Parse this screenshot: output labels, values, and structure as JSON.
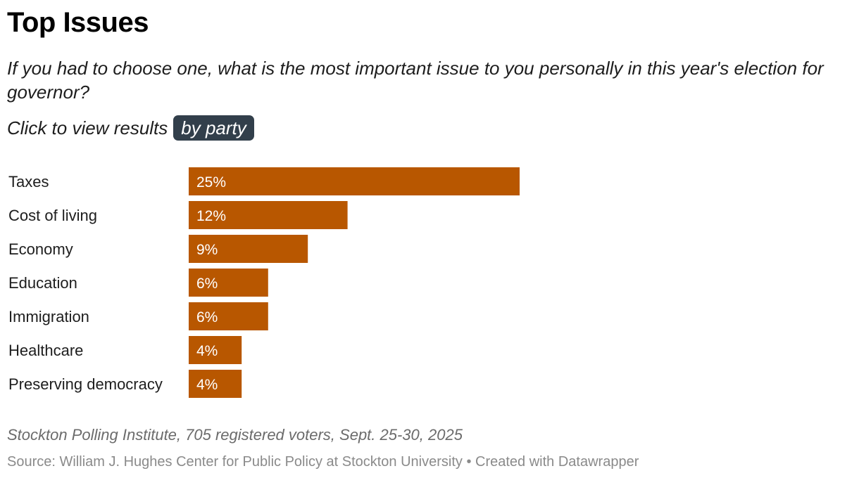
{
  "header": {
    "title": "Top Issues",
    "subtitle": "If you had to choose one, what is the most important issue to you personally in this year's election for governor?",
    "cta_text": "Click to view results",
    "cta_button": "by party"
  },
  "chart_data": {
    "type": "bar",
    "orientation": "horizontal",
    "title": "Top Issues",
    "categories": [
      "Taxes",
      "Cost of living",
      "Economy",
      "Education",
      "Immigration",
      "Healthcare",
      "Preserving democracy"
    ],
    "values": [
      25,
      12,
      9,
      6,
      6,
      4,
      4
    ],
    "value_labels": [
      "25%",
      "12%",
      "9%",
      "6%",
      "6%",
      "4%",
      "4%"
    ],
    "unit": "%",
    "xlim": [
      0,
      25
    ],
    "bar_color": "#b85700",
    "label_color": "#ffffff",
    "grid": false,
    "xlabel": "",
    "ylabel": ""
  },
  "footer": {
    "note": "Stockton Polling Institute, 705 registered voters, Sept. 25-30, 2025",
    "source": "Source: William J. Hughes Center for Public Policy at Stockton University • Created with Datawrapper"
  }
}
